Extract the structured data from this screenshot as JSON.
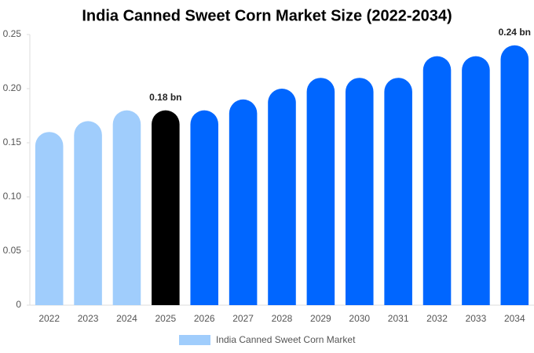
{
  "chart_data": {
    "type": "bar",
    "title": "India Canned Sweet Corn Market Size (2022-2034)",
    "categories": [
      "2022",
      "2023",
      "2024",
      "2025",
      "2026",
      "2027",
      "2028",
      "2029",
      "2030",
      "2031",
      "2032",
      "2033",
      "2034"
    ],
    "series": [
      {
        "name": "India Canned Sweet Corn Market",
        "color": "#a0cdfc",
        "values": [
          0.16,
          0.17,
          0.18,
          0.18,
          0.18,
          0.19,
          0.2,
          0.21,
          0.21,
          0.21,
          0.23,
          0.23,
          0.24
        ],
        "colors": [
          "#a0cdfc",
          "#a0cdfc",
          "#a0cdfc",
          "#000000",
          "#0066ff",
          "#0066ff",
          "#0066ff",
          "#0066ff",
          "#0066ff",
          "#0066ff",
          "#0066ff",
          "#0066ff",
          "#0066ff"
        ],
        "value_labels": [
          null,
          null,
          null,
          "0.18 bn",
          null,
          null,
          null,
          null,
          null,
          null,
          null,
          null,
          "0.24 bn"
        ]
      }
    ],
    "ylim": [
      0,
      0.25
    ],
    "yticks": [
      0,
      0.05,
      {
        "value": 0.1,
        "label": "0.10"
      },
      0.15,
      {
        "value": 0.2,
        "label": "0.20"
      },
      0.25
    ],
    "grid": false
  }
}
